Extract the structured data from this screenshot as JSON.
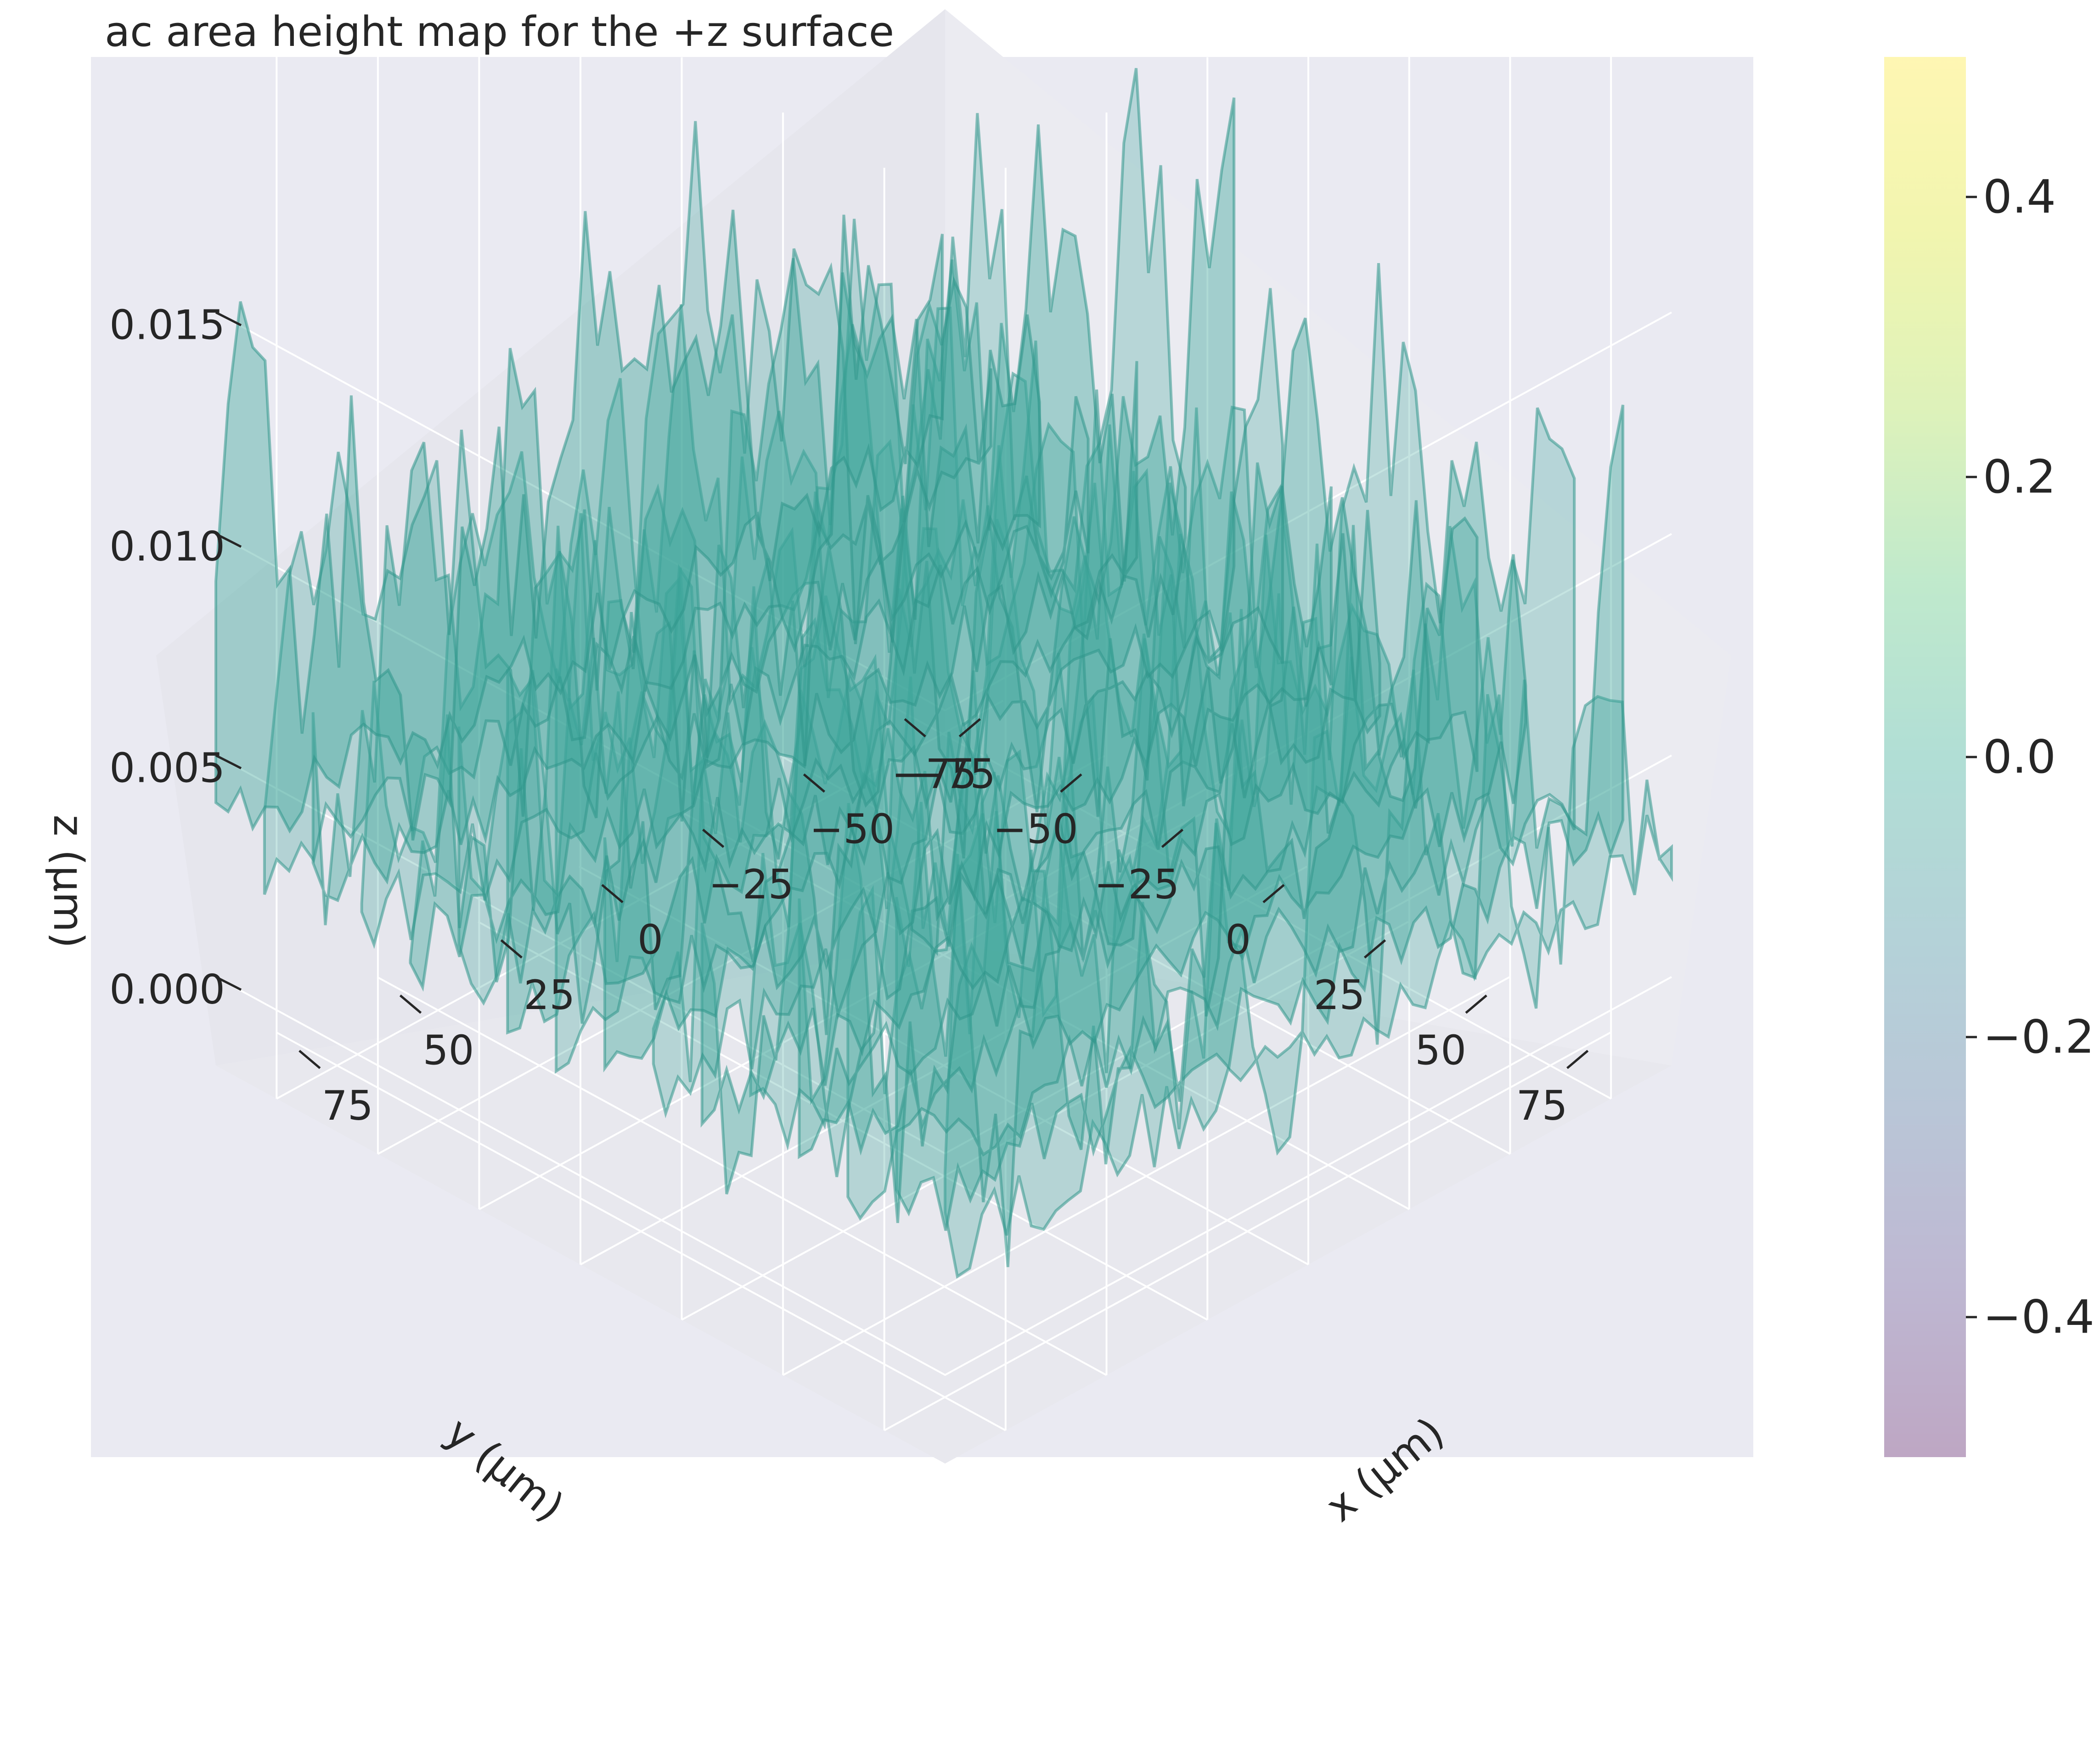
{
  "chart_data": {
    "type": "surface3d",
    "title": "ac area height map for the +z surface",
    "xlabel": "x (μm)",
    "ylabel": "y (μm)",
    "zlabel": "z (μm)",
    "x_ticks": [
      "−75",
      "−50",
      "−25",
      "0",
      "25",
      "50",
      "75"
    ],
    "y_ticks": [
      "−75",
      "−50",
      "−25",
      "0",
      "25",
      "50",
      "75"
    ],
    "z_ticks": [
      "0.000",
      "0.005",
      "0.010",
      "0.015"
    ],
    "xlim": [
      -90,
      90
    ],
    "ylim": [
      -90,
      90
    ],
    "zlim": [
      -0.002,
      0.018
    ],
    "surface": {
      "colour": "#3fa79c",
      "ridge_colour": "#2f958b",
      "description_rows": 16,
      "description_cols": 60
    },
    "colorbar": {
      "ticks": [
        "−0.4",
        "−0.2",
        "0.0",
        "0.2",
        "0.4"
      ],
      "tick_values": [
        -0.4,
        -0.2,
        0.0,
        0.2,
        0.4
      ],
      "range": [
        -0.5,
        0.5
      ],
      "colormap": "viridis",
      "alpha": 0.35
    },
    "colors": {
      "axes_background": "#eaeaf2",
      "pane": "#e6e6ed",
      "grid": "#ffffff"
    }
  }
}
